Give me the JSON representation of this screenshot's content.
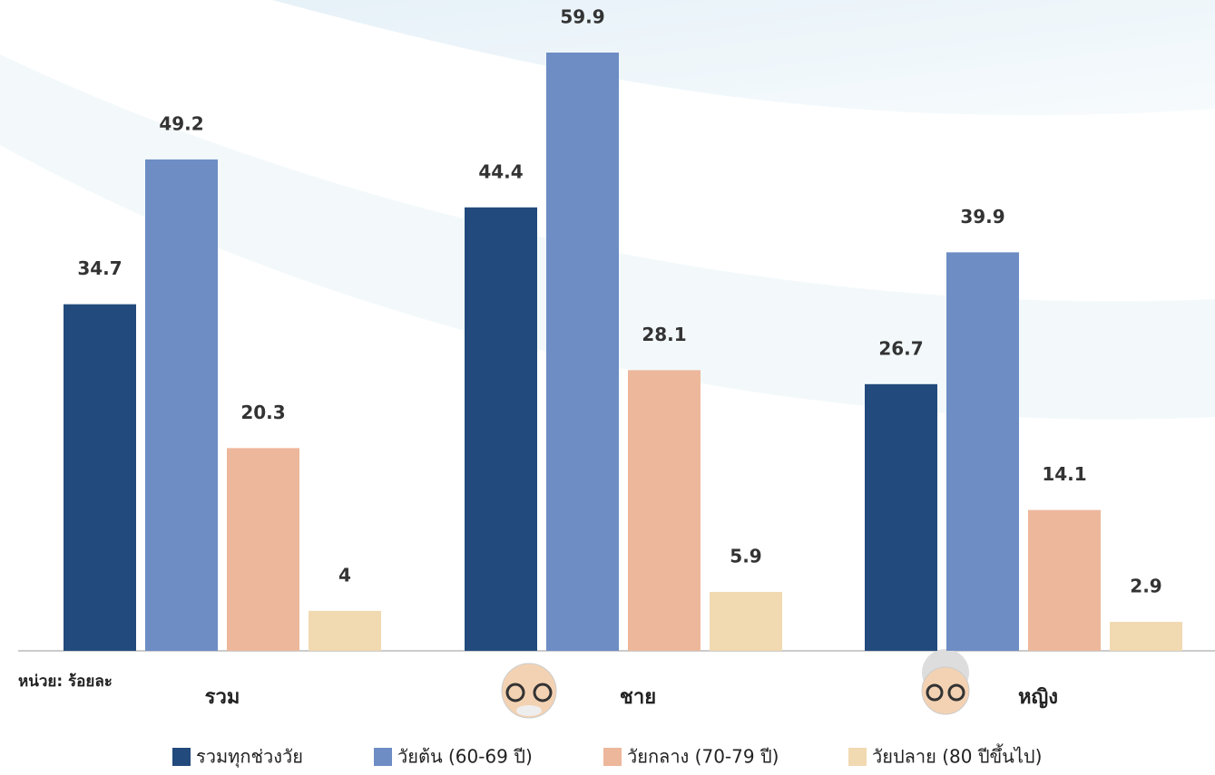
{
  "chart_data": {
    "type": "bar",
    "categories": [
      "รวม",
      "ชาย",
      "หญิง"
    ],
    "unit_label": "หน่วย: ร้อยละ",
    "series": [
      {
        "name": "รวมทุกช่วงวัย",
        "color": "#224a7c",
        "values": [
          34.7,
          44.4,
          26.7
        ]
      },
      {
        "name": "วัยต้น (60-69 ปี)",
        "color": "#6d8dc4",
        "values": [
          49.2,
          59.9,
          39.9
        ]
      },
      {
        "name": "วัยกลาง (70-79 ปี)",
        "color": "#edb79b",
        "values": [
          20.3,
          28.1,
          14.1
        ]
      },
      {
        "name": "วัยปลาย (80 ปีขึ้นไป)",
        "color": "#f1d9b1",
        "values": [
          4,
          5.9,
          2.9
        ]
      }
    ]
  }
}
